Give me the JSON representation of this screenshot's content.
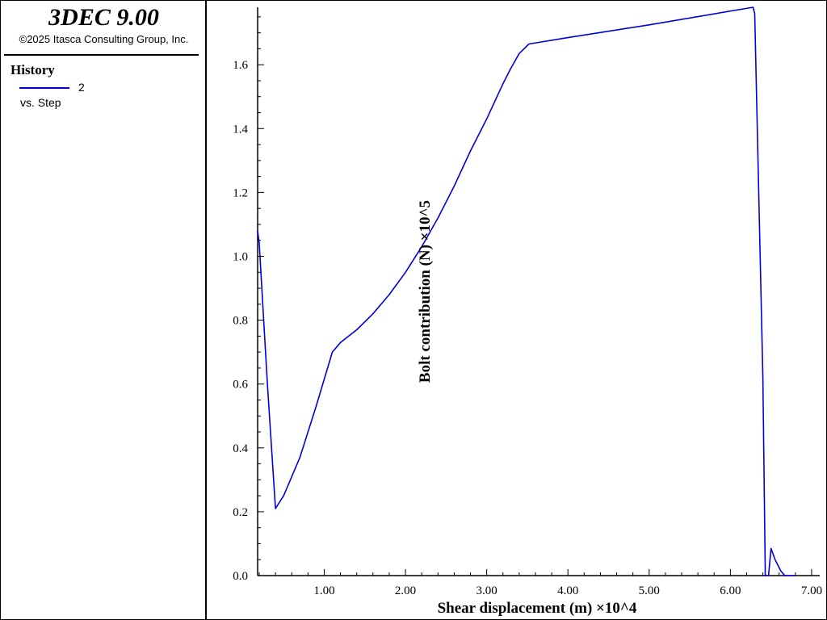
{
  "app": {
    "title": "3DEC 9.00",
    "copyright": "©2025 Itasca Consulting Group, Inc."
  },
  "legend": {
    "heading": "History",
    "series_label": "2",
    "sub_label": "vs. Step",
    "swatch_color": "#0000dd"
  },
  "chart_data": {
    "type": "line",
    "xlabel": "Shear displacement (m) ×10^4",
    "ylabel": "Bolt contribution (N) ×10^5",
    "xlim": [
      0.18,
      7.1
    ],
    "ylim": [
      0,
      1.78
    ],
    "x_ticks": [
      "1.00",
      "2.00",
      "3.00",
      "4.00",
      "5.00",
      "6.00",
      "7.00"
    ],
    "x_tick_values": [
      1,
      2,
      3,
      4,
      5,
      6,
      7
    ],
    "y_ticks": [
      "0.0",
      "0.2",
      "0.4",
      "0.6",
      "0.8",
      "1.0",
      "1.2",
      "1.4",
      "1.6"
    ],
    "y_tick_values": [
      0,
      0.2,
      0.4,
      0.6,
      0.8,
      1.0,
      1.2,
      1.4,
      1.6
    ],
    "series": [
      {
        "color": "#0000dd",
        "points": [
          [
            0.18,
            1.08
          ],
          [
            0.2,
            1.04
          ],
          [
            0.3,
            0.6
          ],
          [
            0.4,
            0.21
          ],
          [
            0.5,
            0.25
          ],
          [
            0.7,
            0.37
          ],
          [
            0.9,
            0.53
          ],
          [
            1.1,
            0.7
          ],
          [
            1.2,
            0.73
          ],
          [
            1.4,
            0.77
          ],
          [
            1.6,
            0.82
          ],
          [
            1.8,
            0.88
          ],
          [
            2.0,
            0.95
          ],
          [
            2.2,
            1.03
          ],
          [
            2.4,
            1.12
          ],
          [
            2.6,
            1.22
          ],
          [
            2.8,
            1.33
          ],
          [
            3.0,
            1.43
          ],
          [
            3.2,
            1.54
          ],
          [
            3.3,
            1.59
          ],
          [
            3.4,
            1.635
          ],
          [
            3.52,
            1.665
          ],
          [
            4.0,
            1.685
          ],
          [
            5.0,
            1.725
          ],
          [
            6.28,
            1.78
          ],
          [
            6.3,
            1.76
          ],
          [
            6.4,
            0.62
          ],
          [
            6.43,
            0.0
          ],
          [
            6.47,
            0.0
          ],
          [
            6.5,
            0.085
          ],
          [
            6.55,
            0.05
          ],
          [
            6.62,
            0.015
          ],
          [
            6.67,
            0.0
          ],
          [
            6.8,
            0.0
          ]
        ]
      }
    ]
  }
}
